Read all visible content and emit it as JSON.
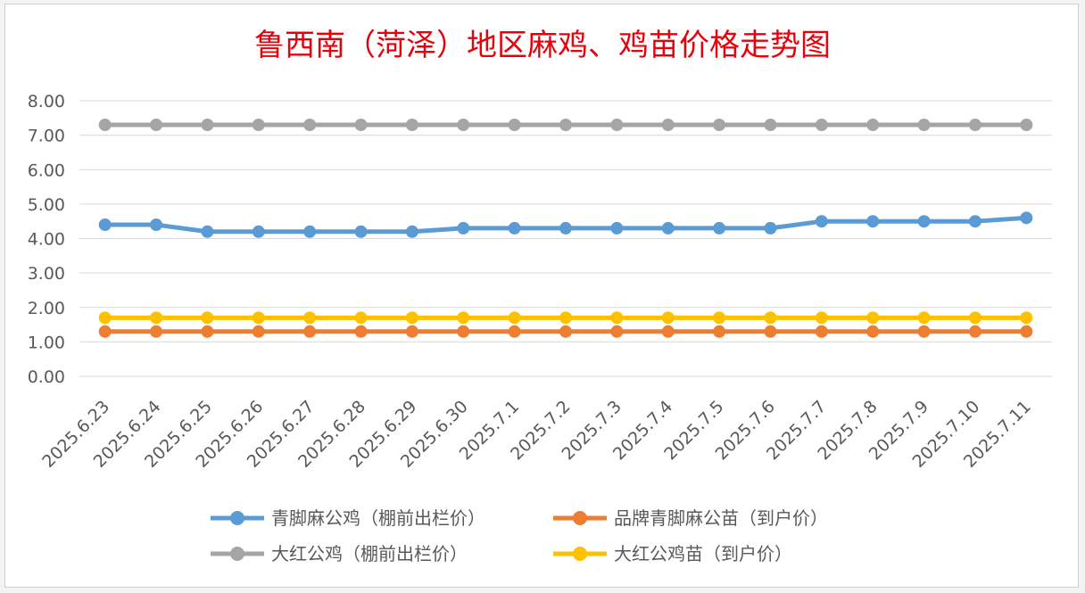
{
  "chart_data": {
    "type": "line",
    "title": "鲁西南（菏泽）地区麻鸡、鸡苗价格走势图",
    "xlabel": "",
    "ylabel": "",
    "ylim": [
      0,
      8
    ],
    "yticks": [
      "0.00",
      "1.00",
      "2.00",
      "3.00",
      "4.00",
      "5.00",
      "6.00",
      "7.00",
      "8.00"
    ],
    "grid": true,
    "legend_position": "bottom",
    "categories": [
      "2025.6.23",
      "2025.6.24",
      "2025.6.25",
      "2025.6.26",
      "2025.6.27",
      "2025.6.28",
      "2025.6.29",
      "2025.6.30",
      "2025.7.1",
      "2025.7.2",
      "2025.7.3",
      "2025.7.4",
      "2025.7.5",
      "2025.7.6",
      "2025.7.7",
      "2025.7.8",
      "2025.7.9",
      "2025.7.10",
      "2025.7.11"
    ],
    "series": [
      {
        "name": "青脚麻公鸡（棚前出栏价）",
        "color": "#5b9bd5",
        "values": [
          4.4,
          4.4,
          4.2,
          4.2,
          4.2,
          4.2,
          4.2,
          4.3,
          4.3,
          4.3,
          4.3,
          4.3,
          4.3,
          4.3,
          4.5,
          4.5,
          4.5,
          4.5,
          4.6
        ]
      },
      {
        "name": "品牌青脚麻公苗（到户价）",
        "color": "#ed7d31",
        "values": [
          1.3,
          1.3,
          1.3,
          1.3,
          1.3,
          1.3,
          1.3,
          1.3,
          1.3,
          1.3,
          1.3,
          1.3,
          1.3,
          1.3,
          1.3,
          1.3,
          1.3,
          1.3,
          1.3
        ]
      },
      {
        "name": "大红公鸡（棚前出栏价）",
        "color": "#a5a5a5",
        "values": [
          7.3,
          7.3,
          7.3,
          7.3,
          7.3,
          7.3,
          7.3,
          7.3,
          7.3,
          7.3,
          7.3,
          7.3,
          7.3,
          7.3,
          7.3,
          7.3,
          7.3,
          7.3,
          7.3
        ]
      },
      {
        "name": "大红公鸡苗（到户价）",
        "color": "#ffc000",
        "values": [
          1.7,
          1.7,
          1.7,
          1.7,
          1.7,
          1.7,
          1.7,
          1.7,
          1.7,
          1.7,
          1.7,
          1.7,
          1.7,
          1.7,
          1.7,
          1.7,
          1.7,
          1.7,
          1.7
        ]
      }
    ]
  }
}
